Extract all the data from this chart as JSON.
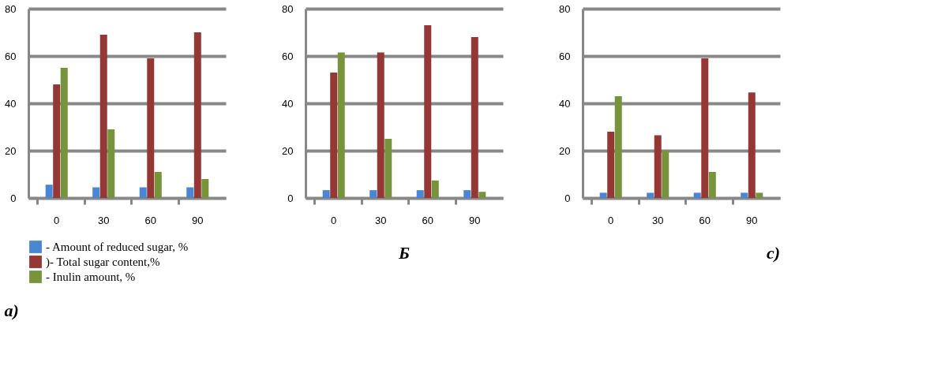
{
  "chart_data": [
    {
      "type": "bar",
      "title": "a)",
      "categories": [
        "0",
        "30",
        "60",
        "90"
      ],
      "ylim": [
        0,
        80
      ],
      "yticks": [
        0,
        20,
        40,
        60,
        80
      ],
      "grid": "y",
      "legend": "bottom",
      "series": [
        {
          "name": "- Amount of reduced sugar, %",
          "color": "#4a86d6",
          "values": [
            5.6,
            4.5,
            4.5,
            4.5
          ]
        },
        {
          "name": ")- Total sugar content,%",
          "color": "#953735",
          "values": [
            48,
            69,
            59,
            70
          ]
        },
        {
          "name": "- Inulin amount, %",
          "color": "#77933c",
          "values": [
            55,
            29,
            11,
            8
          ]
        }
      ]
    },
    {
      "type": "bar",
      "title": "Б",
      "categories": [
        "0",
        "30",
        "60",
        "90"
      ],
      "ylim": [
        0,
        80
      ],
      "yticks": [
        0,
        20,
        40,
        60,
        80
      ],
      "grid": "y",
      "series": [
        {
          "color": "#4a86d6",
          "values": [
            3.3,
            3.3,
            3.3,
            3.3
          ]
        },
        {
          "color": "#953735",
          "values": [
            53,
            61.5,
            73,
            68
          ]
        },
        {
          "color": "#77933c",
          "values": [
            61.5,
            25,
            7.4,
            2.6
          ]
        }
      ]
    },
    {
      "type": "bar",
      "title": "c)",
      "categories": [
        "0",
        "30",
        "60",
        "90"
      ],
      "ylim": [
        0,
        80
      ],
      "yticks": [
        0,
        20,
        40,
        60,
        80
      ],
      "grid": "y",
      "series": [
        {
          "color": "#4a86d6",
          "values": [
            2.2,
            2.2,
            2.2,
            2.2
          ]
        },
        {
          "color": "#953735",
          "values": [
            28,
            26.5,
            59,
            44.6
          ]
        },
        {
          "color": "#77933c",
          "values": [
            43,
            20,
            11,
            2.2
          ]
        }
      ]
    }
  ]
}
